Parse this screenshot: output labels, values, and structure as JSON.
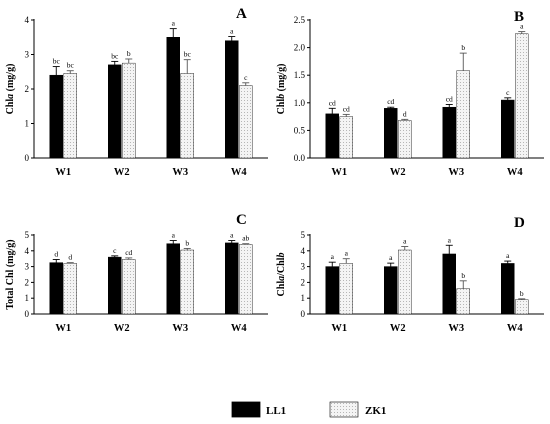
{
  "legend": {
    "items": [
      {
        "label": "LL1",
        "color": "#000000"
      },
      {
        "label": "ZK1",
        "color": "#f2f2f2",
        "pattern": "dotted"
      }
    ]
  },
  "chart_data": [
    {
      "type": "bar",
      "panel": "A",
      "ylabel": "Chla (mg/g)",
      "ylabel_main": "Chl",
      "ylabel_italic": "a",
      "ylabel_unit": " (mg/g)",
      "ylim": [
        0,
        4
      ],
      "yticks": [
        0,
        1,
        2,
        3,
        4
      ],
      "categories": [
        "W1",
        "W2",
        "W3",
        "W4"
      ],
      "series": [
        {
          "name": "LL1",
          "values": [
            2.4,
            2.7,
            3.5,
            3.4
          ],
          "errors": [
            0.25,
            0.1,
            0.25,
            0.12
          ],
          "letters": [
            "bc",
            "bc",
            "a",
            "a"
          ]
        },
        {
          "name": "ZK1",
          "values": [
            2.45,
            2.75,
            2.45,
            2.1
          ],
          "errors": [
            0.08,
            0.12,
            0.4,
            0.08
          ],
          "letters": [
            "bc",
            "b",
            "bc",
            "c"
          ]
        }
      ]
    },
    {
      "type": "bar",
      "panel": "B",
      "ylabel": "Chlb (mg/g)",
      "ylabel_main": "Chl",
      "ylabel_italic": "b",
      "ylabel_unit": " (mg/g)",
      "ylim": [
        0,
        2.5
      ],
      "yticks": [
        0.0,
        0.5,
        1.0,
        1.5,
        2.0,
        2.5
      ],
      "ytick_labels": [
        "0.0",
        "0.5",
        "1.0",
        "1.5",
        "2.0",
        "2.5"
      ],
      "categories": [
        "W1",
        "W2",
        "W3",
        "W4"
      ],
      "series": [
        {
          "name": "LL1",
          "values": [
            0.8,
            0.9,
            0.92,
            1.05
          ],
          "errors": [
            0.1,
            0.02,
            0.05,
            0.04
          ],
          "letters": [
            "cd",
            "cd",
            "cd",
            "c"
          ]
        },
        {
          "name": "ZK1",
          "values": [
            0.75,
            0.68,
            1.58,
            2.25
          ],
          "errors": [
            0.04,
            0.02,
            0.32,
            0.04
          ],
          "letters": [
            "cd",
            "d",
            "b",
            "a"
          ]
        }
      ]
    },
    {
      "type": "bar",
      "panel": "C",
      "ylabel": "Total Chl (mg/g)",
      "ylabel_main": "Total Chl (mg/g)",
      "ylabel_italic": "",
      "ylabel_unit": "",
      "ylim": [
        0,
        5
      ],
      "yticks": [
        0,
        1,
        2,
        3,
        4,
        5
      ],
      "categories": [
        "W1",
        "W2",
        "W3",
        "W4"
      ],
      "series": [
        {
          "name": "LL1",
          "values": [
            3.25,
            3.6,
            4.45,
            4.5
          ],
          "errors": [
            0.2,
            0.08,
            0.2,
            0.15
          ],
          "letters": [
            "d",
            "c",
            "a",
            "a"
          ]
        },
        {
          "name": "ZK1",
          "values": [
            3.2,
            3.45,
            4.05,
            4.4
          ],
          "errors": [
            0.05,
            0.1,
            0.1,
            0.05
          ],
          "letters": [
            "d",
            "cd",
            "b",
            "ab"
          ]
        }
      ]
    },
    {
      "type": "bar",
      "panel": "D",
      "ylabel": "Chla/Chlb",
      "ylabel_main": "Chl",
      "ylabel_italic": "a",
      "ylabel_unit": "/Chl",
      "ylabel_italic2": "b",
      "ylim": [
        0,
        5
      ],
      "yticks": [
        0,
        1,
        2,
        3,
        4,
        5
      ],
      "categories": [
        "W1",
        "W2",
        "W3",
        "W4"
      ],
      "series": [
        {
          "name": "LL1",
          "values": [
            3.0,
            3.0,
            3.8,
            3.2
          ],
          "errors": [
            0.28,
            0.22,
            0.55,
            0.15
          ],
          "letters": [
            "a",
            "a",
            "a",
            "a"
          ]
        },
        {
          "name": "ZK1",
          "values": [
            3.2,
            4.05,
            1.6,
            0.9
          ],
          "errors": [
            0.3,
            0.22,
            0.5,
            0.06
          ],
          "letters": [
            "a",
            "a",
            "b",
            "b"
          ]
        }
      ]
    }
  ]
}
